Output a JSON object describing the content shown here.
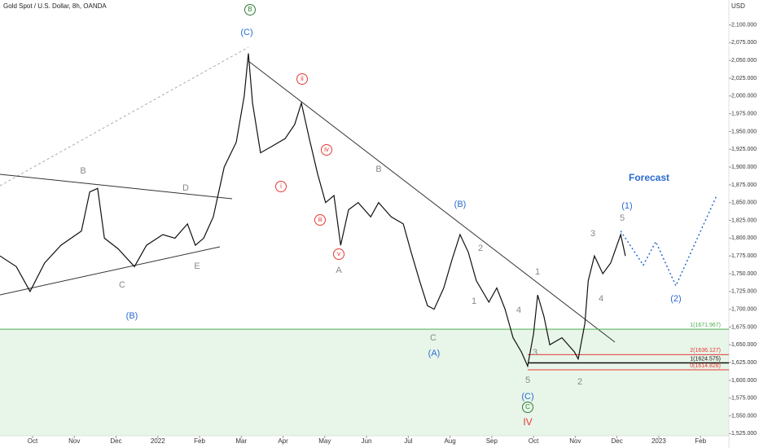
{
  "chart_data": {
    "type": "line",
    "title": "Gold Spot / U.S. Dollar, 8h, OANDA",
    "y_unit": "USD",
    "series": [
      {
        "color": "#111111",
        "x": [
          -0.78,
          -0.39,
          -0.06,
          0.29,
          0.68,
          1.17,
          1.37,
          1.56,
          1.72,
          2.05,
          2.44,
          2.73,
          3.12,
          3.41,
          3.71,
          3.9,
          4.1,
          4.33,
          4.59,
          4.88,
          5.07,
          5.17,
          5.27,
          5.46,
          5.76,
          6.05,
          6.28,
          6.44,
          6.63,
          6.83,
          7.02,
          7.22,
          7.38,
          7.57,
          7.8,
          8.1,
          8.29,
          8.59,
          8.88,
          9.07,
          9.27,
          9.46,
          9.62,
          9.85,
          10.05,
          10.24,
          10.44,
          10.63,
          10.93,
          11.12,
          11.32,
          11.51,
          11.71,
          11.86,
          12.0,
          12.1,
          12.25,
          12.39,
          12.68,
          12.98,
          13.07,
          13.23,
          13.31,
          13.46,
          13.66,
          13.85,
          14.09,
          14.2
        ],
        "values": [
          1775,
          1760,
          1725,
          1765,
          1790,
          1810,
          1865,
          1870,
          1800,
          1785,
          1760,
          1790,
          1805,
          1800,
          1820,
          1790,
          1800,
          1830,
          1900,
          1935,
          2000,
          2060,
          1990,
          1920,
          1930,
          1940,
          1960,
          1990,
          1940,
          1890,
          1850,
          1860,
          1790,
          1840,
          1850,
          1830,
          1850,
          1830,
          1820,
          1780,
          1740,
          1705,
          1700,
          1730,
          1770,
          1805,
          1780,
          1740,
          1710,
          1730,
          1700,
          1660,
          1640,
          1620,
          1665,
          1720,
          1690,
          1650,
          1660,
          1640,
          1630,
          1680,
          1740,
          1775,
          1750,
          1765,
          1805,
          1775
        ]
      },
      {
        "name": "Forecast",
        "color": "#2a6bd1",
        "dashed": true,
        "x": [
          14.09,
          14.63,
          14.93,
          15.41,
          16.39
        ],
        "values": [
          1810,
          1762,
          1795,
          1733,
          1860
        ]
      }
    ],
    "levels": [
      {
        "value": 1671.967,
        "label": "1(1671.967)",
        "color": "#4caf50"
      },
      {
        "value": 1636.127,
        "label": "2(1636.127)",
        "color": "#e53935"
      },
      {
        "value": 1624.575,
        "label": "1(1624.575)",
        "color": "#111111"
      },
      {
        "value": 1614.828,
        "label": "0(1614.828)",
        "color": "#e53935"
      }
    ],
    "annotations": [
      "B",
      "D",
      "C",
      "E",
      "A",
      "B",
      "C",
      "1",
      "2",
      "1",
      "3",
      "4",
      "5",
      "2",
      "3",
      "4",
      "5",
      "(B)",
      "(C)",
      "(B)",
      "(A)",
      "(C)",
      "(1)",
      "(2)",
      "i",
      "ii",
      "iii",
      "iv",
      "v",
      "B",
      "C",
      "IV"
    ],
    "xlim": [
      -0.78,
      16.68
    ],
    "ylim": [
      1522,
      2135
    ],
    "xticks": [
      {
        "value": 0,
        "label": "Oct"
      },
      {
        "value": 1,
        "label": "Nov"
      },
      {
        "value": 2,
        "label": "Dec"
      },
      {
        "value": 3,
        "label": "2022"
      },
      {
        "value": 4,
        "label": "Feb"
      },
      {
        "value": 5,
        "label": "Mar"
      },
      {
        "value": 6,
        "label": "Apr"
      },
      {
        "value": 7,
        "label": "May"
      },
      {
        "value": 8,
        "label": "Jun"
      },
      {
        "value": 9,
        "label": "Jul"
      },
      {
        "value": 10,
        "label": "Aug"
      },
      {
        "value": 11,
        "label": "Sep"
      },
      {
        "value": 12,
        "label": "Oct"
      },
      {
        "value": 13,
        "label": "Nov"
      },
      {
        "value": 14,
        "label": "Dec"
      },
      {
        "value": 15,
        "label": "2023"
      },
      {
        "value": 16,
        "label": "Feb"
      }
    ],
    "yticks": [
      {
        "value": 1525,
        "label": "1,525.000"
      },
      {
        "value": 1550,
        "label": "1,550.000"
      },
      {
        "value": 1575,
        "label": "1,575.000"
      },
      {
        "value": 1600,
        "label": "1,600.000"
      },
      {
        "value": 1625,
        "label": "1,625.000"
      },
      {
        "value": 1650,
        "label": "1,650.000"
      },
      {
        "value": 1675,
        "label": "1,675.000"
      },
      {
        "value": 1700,
        "label": "1,700.000"
      },
      {
        "value": 1725,
        "label": "1,725.000"
      },
      {
        "value": 1750,
        "label": "1,750.000"
      },
      {
        "value": 1775,
        "label": "1,775.000"
      },
      {
        "value": 1800,
        "label": "1,800.000"
      },
      {
        "value": 1825,
        "label": "1,825.000"
      },
      {
        "value": 1850,
        "label": "1,850.000"
      },
      {
        "value": 1875,
        "label": "1,875.000"
      },
      {
        "value": 1900,
        "label": "1,900.000"
      },
      {
        "value": 1925,
        "label": "1,925.000"
      },
      {
        "value": 1950,
        "label": "1,950.000"
      },
      {
        "value": 1975,
        "label": "1,975.000"
      },
      {
        "value": 2000,
        "label": "2,000.000"
      },
      {
        "value": 2025,
        "label": "2,025.000"
      },
      {
        "value": 2050,
        "label": "2,050.000"
      },
      {
        "value": 2075,
        "label": "2,075.000"
      },
      {
        "value": 2100,
        "label": "2,100.000"
      }
    ]
  }
}
